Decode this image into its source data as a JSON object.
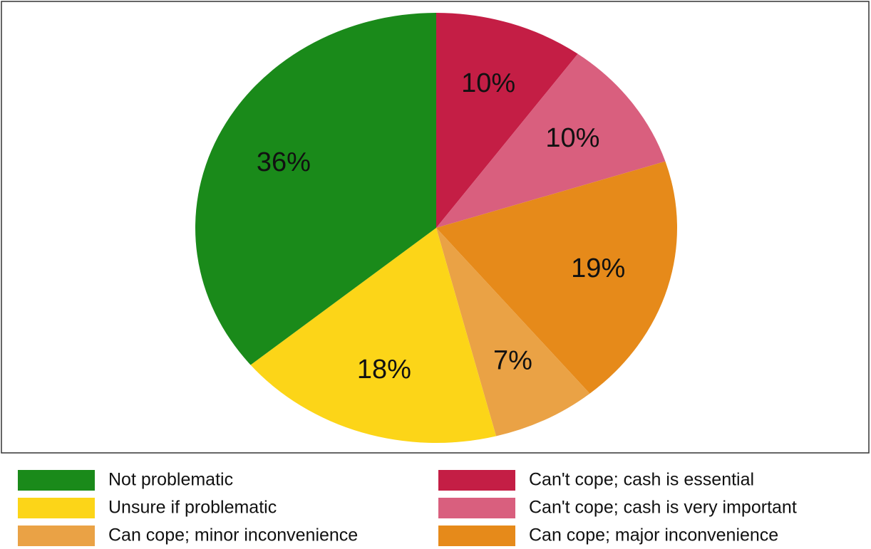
{
  "chart_data": {
    "type": "pie",
    "categories": [
      "Can't cope; cash is essential",
      "Can't cope; cash is very important",
      "Can cope; major inconvenience",
      "Can cope; minor inconvenience",
      "Unsure if problematic",
      "Not problematic"
    ],
    "values": [
      10,
      10,
      19,
      7,
      18,
      36
    ],
    "value_labels": [
      "10%",
      "10%",
      "19%",
      "7%",
      "18%",
      "36%"
    ],
    "colors": [
      "#c41e45",
      "#d95f7e",
      "#e68a1a",
      "#eaa245",
      "#fcd518",
      "#1a8a1a"
    ]
  }
}
